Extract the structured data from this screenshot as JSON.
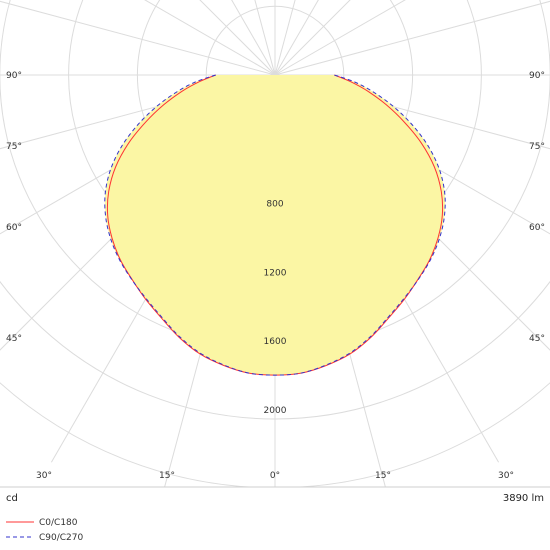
{
  "chart_data": {
    "type": "polar",
    "unit_left": "cd",
    "unit_right": "3890 lm",
    "radial_ticks": [
      400,
      800,
      1200,
      1600,
      2000,
      2400
    ],
    "radial_labels": [
      "800",
      "1200",
      "1600",
      "2000"
    ],
    "angle_labels": {
      "bottom": [
        "30°",
        "15°",
        "0°",
        "15°",
        "30°"
      ],
      "left": [
        "45°",
        "60°",
        "75°",
        "90°"
      ],
      "right": [
        "45°",
        "60°",
        "75°",
        "90°"
      ]
    },
    "grid": true,
    "legend_placement": "bottom-left",
    "fill_color": "#fbf6a4",
    "series": [
      {
        "name": "C0/C180",
        "color": "#ff3333",
        "style": "solid",
        "angles": [
          0,
          5,
          10,
          15,
          20,
          25,
          30,
          35,
          40,
          45,
          50,
          55,
          60,
          65,
          70,
          75,
          80,
          85,
          90
        ],
        "values": [
          1745,
          1740,
          1715,
          1680,
          1625,
          1560,
          1505,
          1450,
          1400,
          1340,
          1270,
          1180,
          1070,
          940,
          800,
          670,
          550,
          440,
          345
        ]
      },
      {
        "name": "C90/C270",
        "color": "#3333cc",
        "style": "dashed",
        "angles": [
          0,
          5,
          10,
          15,
          20,
          25,
          30,
          35,
          40,
          45,
          50,
          55,
          60,
          65,
          70,
          75,
          80,
          85,
          90
        ],
        "values": [
          1745,
          1740,
          1712,
          1675,
          1620,
          1555,
          1500,
          1452,
          1405,
          1350,
          1285,
          1205,
          1105,
          985,
          850,
          715,
          585,
          465,
          345
        ]
      }
    ]
  }
}
